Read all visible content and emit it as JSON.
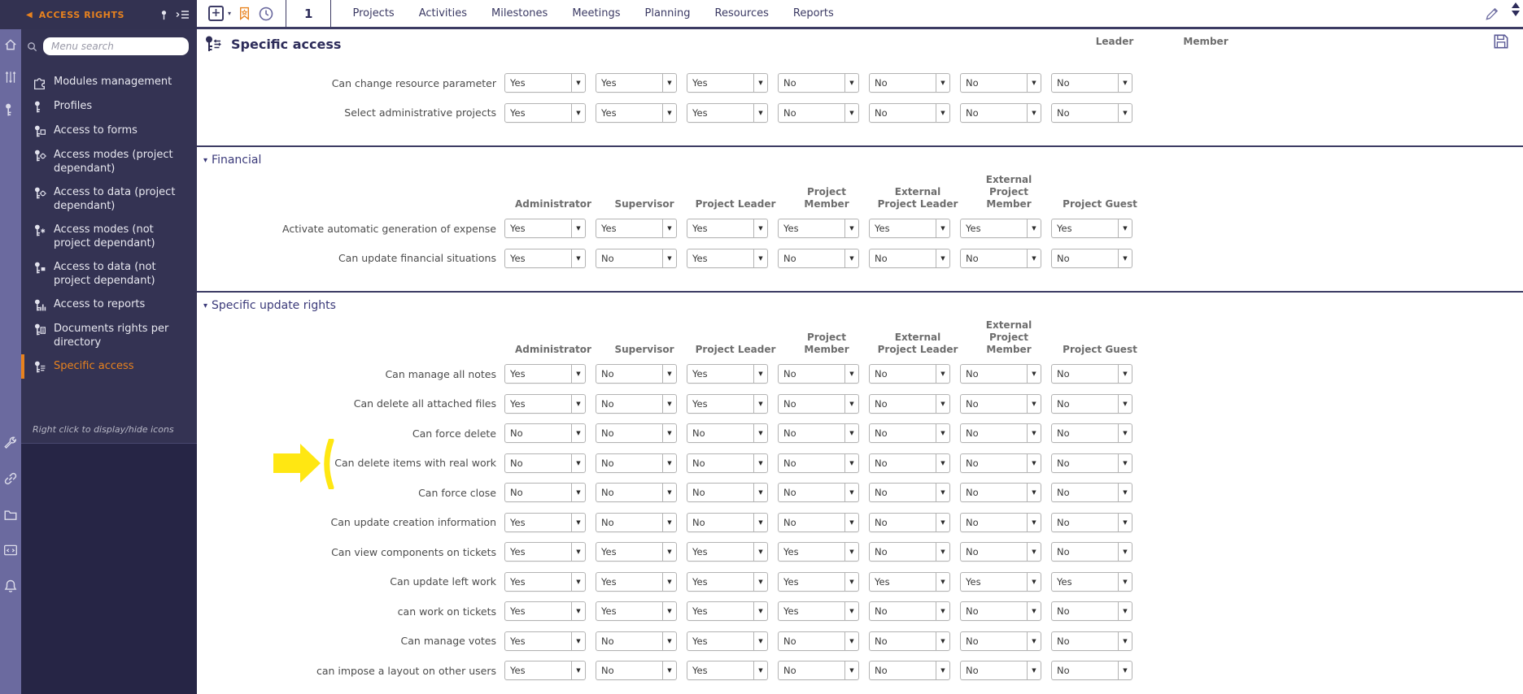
{
  "colors": {
    "navy": "#333251",
    "rail_purple": "#6b6a9f",
    "sidebar_bottom": "#262545",
    "orange_accent": "#e8821e",
    "annotation_yellow": "#ffe712",
    "header_gray": "#6d6d6d"
  },
  "topbar": {
    "module_title": "ACCESS RIGHTS",
    "page_number": "1",
    "nav_items": [
      "Projects",
      "Activities",
      "Milestones",
      "Meetings",
      "Planning",
      "Resources",
      "Reports"
    ],
    "icons": [
      "back-triangle-icon",
      "pin-icon",
      "collapse-menu-icon",
      "add-button",
      "add-caret-icon",
      "bookmark-icon",
      "history-clock-icon",
      "pencil-icon",
      "scroll-up-icon",
      "scroll-down-icon"
    ]
  },
  "rail": {
    "top_icons": [
      "home-icon",
      "sliders-icon",
      "key-icon"
    ],
    "bottom_icons": [
      "wrench-icon",
      "link-icon",
      "folder-icon",
      "code-window-icon",
      "bell-icon"
    ]
  },
  "sidebar": {
    "search_placeholder": "Menu search",
    "search_icon": "search-icon",
    "items": [
      {
        "label": "Modules management",
        "icon": "puzzle-icon",
        "active": false
      },
      {
        "label": "Profiles",
        "icon": "key-icon",
        "active": false
      },
      {
        "label": "Access to forms",
        "icon": "key-form-icon",
        "active": false
      },
      {
        "label": "Access modes (project dependant)",
        "icon": "key-gear-icon",
        "active": false
      },
      {
        "label": "Access to data (project dependant)",
        "icon": "key-gear-icon",
        "active": false
      },
      {
        "label": "Access modes (not project dependant)",
        "icon": "key-asterisk-icon",
        "active": false
      },
      {
        "label": "Access to data (not project dependant)",
        "icon": "key-data-icon",
        "active": false
      },
      {
        "label": "Access to reports",
        "icon": "key-chart-icon",
        "active": false
      },
      {
        "label": "Documents rights per directory",
        "icon": "key-document-icon",
        "active": false
      },
      {
        "label": "Specific access",
        "icon": "key-list-icon",
        "active": true
      }
    ],
    "hint": "Right click to display/hide icons"
  },
  "main": {
    "title": "Specific access",
    "title_icon": "key-list-icon",
    "save_icon": "save-floppy-icon",
    "partial_column_headers": [
      "Leader",
      "Member"
    ],
    "columns": [
      "Administrator",
      "Supervisor",
      "Project Leader",
      "Project Member",
      "External Project Leader",
      "External Project Member",
      "Project Guest"
    ],
    "sections": [
      {
        "title": "",
        "show_headers": false,
        "rows": [
          {
            "label": "Can change resource parameter",
            "values": [
              "Yes",
              "Yes",
              "Yes",
              "No",
              "No",
              "No",
              "No"
            ]
          },
          {
            "label": "Select administrative projects",
            "values": [
              "Yes",
              "Yes",
              "Yes",
              "No",
              "No",
              "No",
              "No"
            ]
          }
        ]
      },
      {
        "title": "Financial",
        "show_headers": true,
        "rows": [
          {
            "label": "Activate automatic generation of expense",
            "values": [
              "Yes",
              "Yes",
              "Yes",
              "Yes",
              "Yes",
              "Yes",
              "Yes"
            ]
          },
          {
            "label": "Can update financial situations",
            "values": [
              "Yes",
              "No",
              "Yes",
              "No",
              "No",
              "No",
              "No"
            ]
          }
        ]
      },
      {
        "title": "Specific update rights",
        "show_headers": true,
        "rows": [
          {
            "label": "Can manage all notes",
            "values": [
              "Yes",
              "No",
              "Yes",
              "No",
              "No",
              "No",
              "No"
            ]
          },
          {
            "label": "Can delete all attached files",
            "values": [
              "Yes",
              "No",
              "Yes",
              "No",
              "No",
              "No",
              "No"
            ]
          },
          {
            "label": "Can force delete",
            "values": [
              "No",
              "No",
              "No",
              "No",
              "No",
              "No",
              "No"
            ]
          },
          {
            "label": "Can delete items with real work",
            "values": [
              "No",
              "No",
              "No",
              "No",
              "No",
              "No",
              "No"
            ],
            "annotated": true
          },
          {
            "label": "Can force close",
            "values": [
              "No",
              "No",
              "No",
              "No",
              "No",
              "No",
              "No"
            ]
          },
          {
            "label": "Can update creation information",
            "values": [
              "Yes",
              "No",
              "No",
              "No",
              "No",
              "No",
              "No"
            ]
          },
          {
            "label": "Can view components on tickets",
            "values": [
              "Yes",
              "Yes",
              "Yes",
              "Yes",
              "No",
              "No",
              "No"
            ]
          },
          {
            "label": "Can update left work",
            "values": [
              "Yes",
              "Yes",
              "Yes",
              "Yes",
              "Yes",
              "Yes",
              "Yes"
            ]
          },
          {
            "label": "can work on tickets",
            "values": [
              "Yes",
              "Yes",
              "Yes",
              "Yes",
              "No",
              "No",
              "No"
            ]
          },
          {
            "label": "Can manage votes",
            "values": [
              "Yes",
              "No",
              "Yes",
              "No",
              "No",
              "No",
              "No"
            ]
          },
          {
            "label": "can impose a layout on other users",
            "values": [
              "Yes",
              "No",
              "Yes",
              "No",
              "No",
              "No",
              "No"
            ]
          }
        ]
      }
    ]
  }
}
